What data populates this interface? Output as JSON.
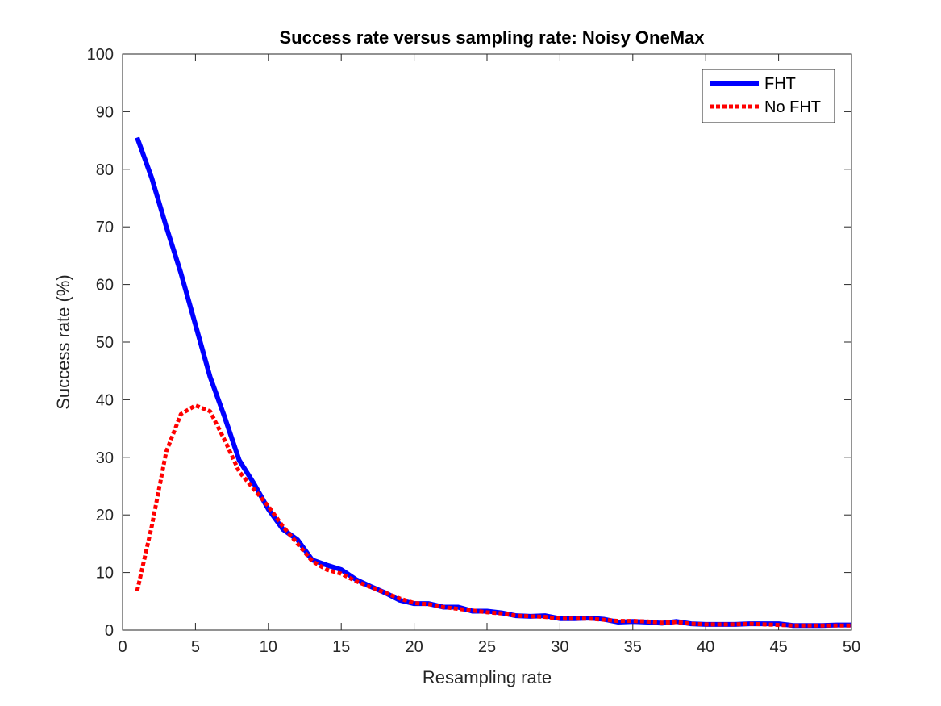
{
  "chart_data": {
    "type": "line",
    "title": "Success rate versus sampling rate: Noisy OneMax",
    "xlabel": "Resampling rate",
    "ylabel": "Success rate (%)",
    "xlim": [
      0,
      50
    ],
    "ylim": [
      0,
      100
    ],
    "xticks": [
      0,
      5,
      10,
      15,
      20,
      25,
      30,
      35,
      40,
      45,
      50
    ],
    "yticks": [
      0,
      10,
      20,
      30,
      40,
      50,
      60,
      70,
      80,
      90,
      100
    ],
    "grid": false,
    "legend_position": "top-right",
    "x": [
      1,
      2,
      3,
      4,
      5,
      6,
      7,
      8,
      9,
      10,
      11,
      12,
      13,
      14,
      15,
      16,
      17,
      18,
      19,
      20,
      21,
      22,
      23,
      24,
      25,
      26,
      27,
      28,
      29,
      30,
      31,
      32,
      33,
      34,
      35,
      36,
      37,
      38,
      39,
      40,
      41,
      42,
      43,
      44,
      45,
      46,
      47,
      48,
      49,
      50
    ],
    "series": [
      {
        "name": "FHT",
        "color": "#0000ff",
        "style": "solid",
        "values": [
          85.5,
          78.5,
          70,
          62,
          53,
          44,
          37,
          29.5,
          25.5,
          21,
          17.5,
          15.7,
          12.2,
          11.3,
          10.5,
          8.8,
          7.6,
          6.5,
          5.2,
          4.6,
          4.6,
          4.0,
          4.0,
          3.3,
          3.3,
          3.0,
          2.5,
          2.4,
          2.5,
          2.0,
          2.0,
          2.1,
          1.9,
          1.4,
          1.5,
          1.4,
          1.2,
          1.5,
          1.1,
          1.0,
          1.0,
          1.0,
          1.1,
          1.1,
          1.1,
          0.8,
          0.8,
          0.8,
          0.9,
          0.9
        ]
      },
      {
        "name": "No FHT",
        "color": "#ff0000",
        "style": "dotted",
        "values": [
          6.8,
          18,
          31,
          37.5,
          39,
          38,
          33,
          27.5,
          24.5,
          21.5,
          18,
          15,
          12,
          10.5,
          9.8,
          8.5,
          7.5,
          6.5,
          5.5,
          4.7,
          4.5,
          4.0,
          3.7,
          3.4,
          3.1,
          2.9,
          2.5,
          2.4,
          2.3,
          2.0,
          2.0,
          2.0,
          1.8,
          1.6,
          1.6,
          1.5,
          1.3,
          1.4,
          1.1,
          1.0,
          1.0,
          1.0,
          1.1,
          1.0,
          0.9,
          0.8,
          0.8,
          0.8,
          0.8,
          0.8
        ]
      }
    ]
  }
}
